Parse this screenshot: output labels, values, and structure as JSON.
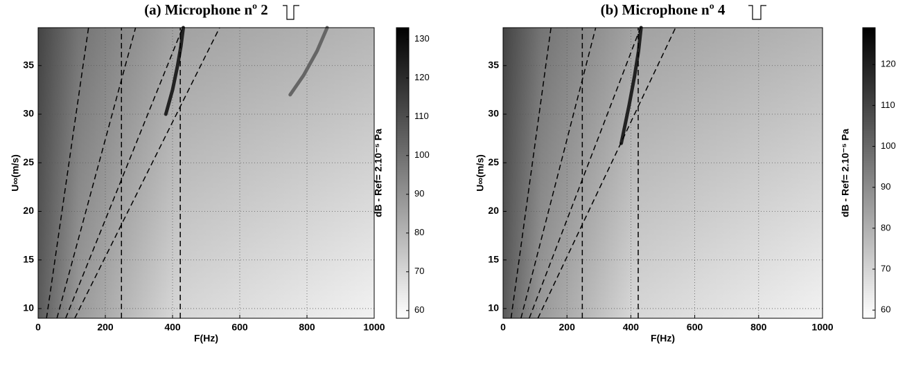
{
  "charts": [
    {
      "chart_data": {
        "type": "heatmap",
        "title": "(a) Microphone nº 2",
        "x_label": "F(Hz)",
        "y_label": "U∞(m/s)",
        "colorbar_label": "dB - Ref= 2.10⁻⁵ Pa",
        "xlim": [
          0,
          1000
        ],
        "xticks": [
          0,
          200,
          400,
          600,
          800,
          1000
        ],
        "ylim": [
          9,
          38.9
        ],
        "yticks": [
          10,
          15,
          20,
          25,
          30,
          35
        ],
        "clim": [
          58,
          133
        ],
        "cticks": [
          60,
          70,
          80,
          90,
          100,
          110,
          120,
          130
        ],
        "grid": true,
        "dashed_lines": [
          {
            "x": [
              25,
              150
            ],
            "y": [
              9,
              38.9
            ]
          },
          {
            "x": [
              56,
              290
            ],
            "y": [
              9,
              38.9
            ]
          },
          {
            "x": [
              82,
              430
            ],
            "y": [
              9,
              38.9
            ]
          },
          {
            "x": [
              109,
              540
            ],
            "y": [
              9,
              38.9
            ]
          },
          {
            "x": [
              248,
              248
            ],
            "y": [
              9,
              38.9
            ]
          },
          {
            "x": [
              423,
              423
            ],
            "y": [
              9,
              38.9
            ]
          }
        ],
        "ridges": [
          {
            "x": [
              380,
              400,
              415,
              425,
              432
            ],
            "y": [
              30,
              32.5,
              35,
              37,
              38.9
            ],
            "color": "#222222"
          },
          {
            "x": [
              750,
              790,
              830,
              860
            ],
            "y": [
              32,
              34,
              36.5,
              38.9
            ],
            "color": "#666666"
          }
        ]
      }
    },
    {
      "chart_data": {
        "type": "heatmap",
        "title": "(b) Microphone nº 4",
        "x_label": "F(Hz)",
        "y_label": "U∞(m/s)",
        "colorbar_label": "dB - Ref= 2.10⁻⁵ Pa",
        "xlim": [
          0,
          1000
        ],
        "xticks": [
          0,
          200,
          400,
          600,
          800,
          1000
        ],
        "ylim": [
          9,
          38.9
        ],
        "yticks": [
          10,
          15,
          20,
          25,
          30,
          35
        ],
        "clim": [
          58,
          129
        ],
        "cticks": [
          60,
          70,
          80,
          90,
          100,
          110,
          120
        ],
        "grid": true,
        "dashed_lines": [
          {
            "x": [
              25,
              150
            ],
            "y": [
              9,
              38.9
            ]
          },
          {
            "x": [
              56,
              290
            ],
            "y": [
              9,
              38.9
            ]
          },
          {
            "x": [
              82,
              430
            ],
            "y": [
              9,
              38.9
            ]
          },
          {
            "x": [
              109,
              540
            ],
            "y": [
              9,
              38.9
            ]
          },
          {
            "x": [
              248,
              248
            ],
            "y": [
              9,
              38.9
            ]
          },
          {
            "x": [
              423,
              423
            ],
            "y": [
              9,
              38.9
            ]
          }
        ],
        "ridges": [
          {
            "x": [
              370,
              395,
              412,
              424,
              432
            ],
            "y": [
              27,
              31,
              34,
              36.5,
              38.9
            ],
            "color": "#222222"
          }
        ]
      }
    }
  ]
}
